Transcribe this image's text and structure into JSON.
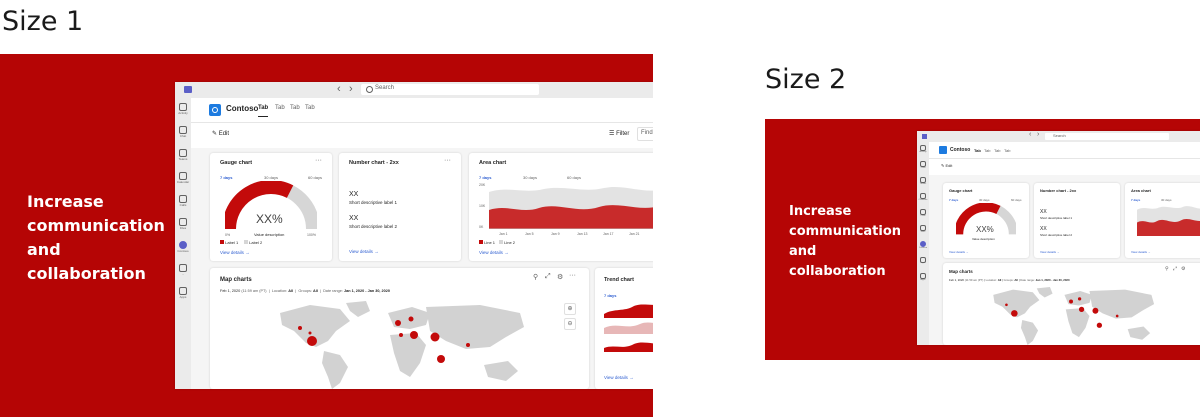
{
  "labels": {
    "size1": "Size 1",
    "size2": "Size 2"
  },
  "banner": {
    "line1": "Increase",
    "line2": "communication",
    "line3": "and",
    "line4": "collaboration"
  },
  "titlebar": {
    "search_placeholder": "Search",
    "back": "‹",
    "forward": "›",
    "more": "..."
  },
  "rail": [
    {
      "name": "activity",
      "label": "Activity"
    },
    {
      "name": "chat",
      "label": "Chat"
    },
    {
      "name": "teams",
      "label": "Teams"
    },
    {
      "name": "calendar",
      "label": "Calendar"
    },
    {
      "name": "calls",
      "label": "Calls"
    },
    {
      "name": "files",
      "label": "Files"
    },
    {
      "name": "contoso",
      "label": "Contoso"
    },
    {
      "name": "more",
      "label": "..."
    },
    {
      "name": "apps",
      "label": "Apps"
    }
  ],
  "header": {
    "app_name": "Contoso",
    "tabs": [
      "Tab",
      "Tab",
      "Tab",
      "Tab"
    ],
    "edit": "Edit",
    "filter": "Filter",
    "find": "Find"
  },
  "gauge": {
    "title": "Gauge chart",
    "ranges": [
      "7 days",
      "30 days",
      "60 days"
    ],
    "value_text": "XX%",
    "value_desc": "Value description",
    "min": "0%",
    "max": "100%",
    "fill_fraction": 0.65,
    "legend": [
      "Label 1",
      "Label 2"
    ],
    "view_details": "View details"
  },
  "number": {
    "title": "Number chart - 2xx",
    "v1": "XX",
    "d1": "Short descriptive label 1",
    "v2": "XX",
    "d2": "Short descriptive label 2",
    "view_details": "View details"
  },
  "area": {
    "title": "Area chart",
    "ranges": [
      "7 days",
      "30 days",
      "60 days"
    ],
    "yticks": [
      "20K",
      "10K",
      "0K"
    ],
    "xticks": [
      "Jan 1",
      "Jan 5",
      "Jan 9",
      "Jan 13",
      "Jan 17",
      "Jan 21"
    ],
    "legend": [
      "Line 1",
      "Line 2"
    ],
    "view_details": "View details"
  },
  "map": {
    "title": "Map charts",
    "subtitle_date": "Feb 1, 2020",
    "subtitle_time": "(11:59 am (PT)",
    "location_label": "Location:",
    "location_value": "All",
    "groups_label": "Groups:",
    "groups_value": "All",
    "range_label": "Date range:",
    "range_value": "Jan 1, 2020 - Jan 30, 2020"
  },
  "trend": {
    "title": "Trend chart",
    "range": "7 days",
    "view_details": "View details"
  },
  "colors": {
    "brand_red": "#b50505",
    "chart_red": "#c30a0a",
    "chart_gray": "#d6d6d6",
    "link": "#2f5fd1"
  }
}
